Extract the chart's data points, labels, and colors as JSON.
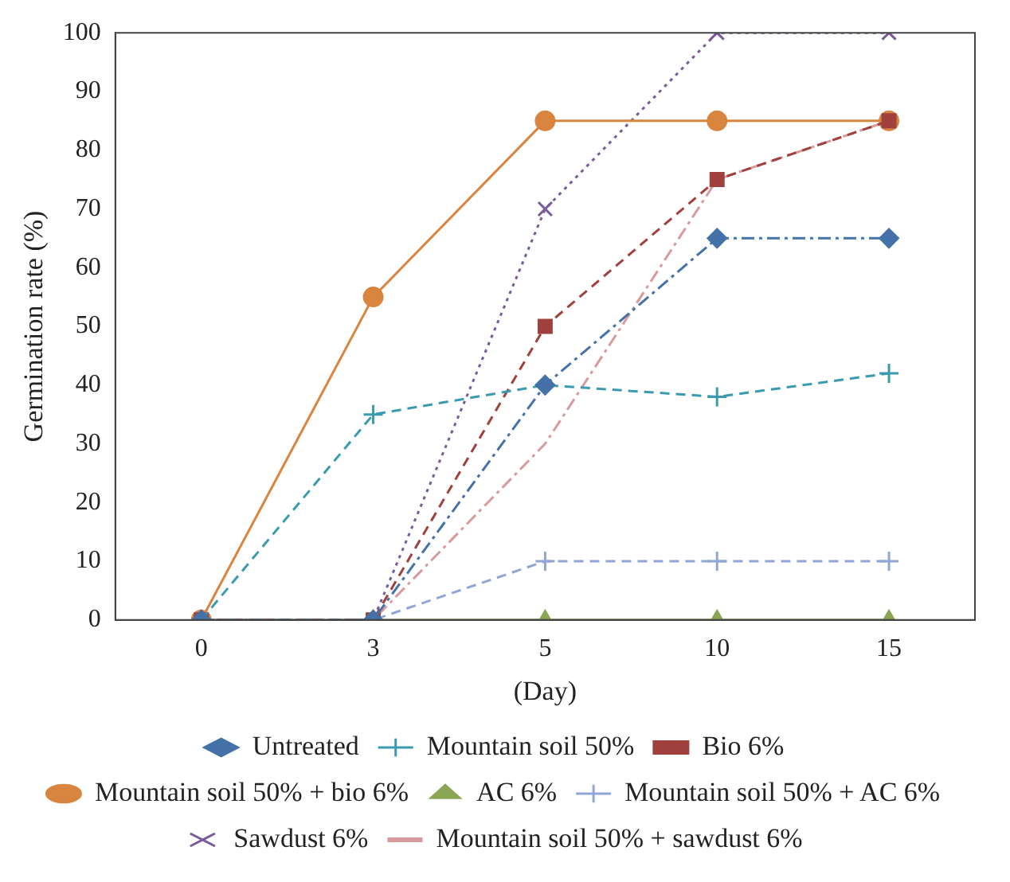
{
  "chart_data": {
    "type": "line",
    "xlabel": "(Day)",
    "ylabel": "Germination rate (%)",
    "categories": [
      "0",
      "3",
      "5",
      "10",
      "15"
    ],
    "ylim": [
      0,
      100
    ],
    "yticks": [
      0,
      10,
      20,
      30,
      40,
      50,
      60,
      70,
      80,
      90,
      100
    ],
    "grid": false,
    "legend": "bottom",
    "series": [
      {
        "name": "Untreated",
        "color": "#4472a8",
        "marker": "diamond",
        "line_style": "dashdot",
        "values": [
          0,
          0,
          40,
          65,
          65
        ]
      },
      {
        "name": "Mountain soil 50%",
        "color": "#3a9bb0",
        "marker": "cross",
        "line_style": "dashed",
        "values": [
          0,
          35,
          40,
          38,
          42
        ]
      },
      {
        "name": "Bio 6%",
        "color": "#a0413d",
        "marker": "square",
        "line_style": "dashed",
        "values": [
          0,
          0,
          50,
          75,
          85
        ]
      },
      {
        "name": "Mountain soil 50% + bio 6%",
        "color": "#d9843f",
        "marker": "circle",
        "line_style": "solid",
        "values": [
          0,
          55,
          85,
          85,
          85
        ]
      },
      {
        "name": "AC 6%",
        "color": "#8aa655",
        "marker": "triangle",
        "line_style": "solid",
        "values": [
          0,
          0,
          0,
          0,
          0
        ]
      },
      {
        "name": "Mountain soil 50% + AC 6%",
        "color": "#8fa6d6",
        "marker": "cross",
        "line_style": "dashed",
        "values": [
          0,
          0,
          10,
          10,
          10
        ]
      },
      {
        "name": "Sawdust 6%",
        "color": "#7a5a9a",
        "marker": "x",
        "line_style": "dotted",
        "values": [
          0,
          0,
          70,
          100,
          100
        ]
      },
      {
        "name": "Mountain soil 50% + sawdust 6%",
        "color": "#d89a9a",
        "marker": "none",
        "line_style": "dashdot",
        "values": [
          0,
          0,
          30,
          75,
          85
        ]
      }
    ]
  }
}
